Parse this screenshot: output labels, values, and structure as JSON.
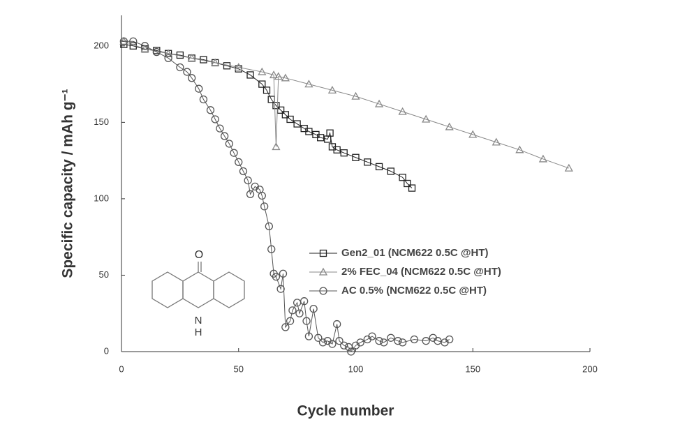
{
  "chart_data": {
    "type": "line",
    "x_label": "Cycle number",
    "y_label": "Specific capacity / mAh g⁻¹",
    "xlim": [
      0,
      200
    ],
    "xticks": [
      0,
      50,
      100,
      150,
      200
    ],
    "ylim": [
      0,
      220
    ],
    "yticks": [
      0,
      50,
      100,
      150,
      200
    ],
    "grid": false,
    "legend": "center-right",
    "structure_labels": [
      "O",
      "N",
      "H"
    ],
    "series": [
      {
        "name": "Gen2_01 (NCM622 0.5C @HT)",
        "color": "#222222",
        "marker": "square",
        "x": [
          1,
          5,
          10,
          15,
          20,
          25,
          30,
          35,
          40,
          45,
          50,
          55,
          60,
          62,
          64,
          66,
          68,
          70,
          72,
          75,
          78,
          80,
          83,
          85,
          88,
          89,
          90,
          92,
          95,
          100,
          105,
          110,
          115,
          120,
          122,
          124
        ],
        "values": [
          201,
          200,
          198,
          197,
          195,
          194,
          192,
          191,
          189,
          187,
          185,
          181,
          175,
          171,
          165,
          161,
          158,
          155,
          152,
          149,
          146,
          144,
          142,
          140,
          139,
          143,
          134,
          132,
          130,
          127,
          124,
          121,
          118,
          114,
          110,
          107
        ]
      },
      {
        "name": "2% FEC_04 (NCM622 0.5C @HT)",
        "color": "#888888",
        "marker": "triangle",
        "x": [
          1,
          10,
          20,
          30,
          40,
          50,
          60,
          65,
          66,
          67,
          70,
          80,
          90,
          100,
          110,
          120,
          130,
          140,
          150,
          160,
          170,
          180,
          191
        ],
        "values": [
          203,
          198,
          195,
          192,
          189,
          186,
          183,
          181,
          134,
          180,
          179,
          175,
          171,
          167,
          162,
          157,
          152,
          147,
          142,
          137,
          132,
          126,
          120
        ]
      },
      {
        "name": "AC 0.5% (NCM622 0.5C @HT)",
        "color": "#555555",
        "marker": "circle",
        "x": [
          1,
          5,
          10,
          15,
          20,
          25,
          28,
          30,
          33,
          35,
          38,
          40,
          42,
          44,
          46,
          48,
          50,
          52,
          54,
          55,
          57,
          59,
          60,
          61,
          63,
          64,
          65,
          66,
          68,
          69,
          70,
          72,
          73,
          75,
          76,
          78,
          79,
          80,
          82,
          84,
          86,
          88,
          90,
          92,
          93,
          95,
          97,
          98,
          100,
          102,
          105,
          107,
          110,
          112,
          115,
          118,
          120,
          125,
          130,
          133,
          135,
          138,
          140
        ],
        "values": [
          203,
          203,
          200,
          196,
          192,
          186,
          183,
          179,
          172,
          165,
          158,
          152,
          146,
          141,
          136,
          130,
          124,
          118,
          112,
          103,
          108,
          106,
          102,
          95,
          82,
          67,
          51,
          49,
          41,
          51,
          16,
          20,
          27,
          32,
          25,
          33,
          20,
          10,
          28,
          9,
          6,
          7,
          5,
          18,
          7,
          4,
          3,
          0,
          4,
          6,
          8,
          10,
          7,
          6,
          9,
          7,
          6,
          8,
          7,
          9,
          7,
          6,
          8
        ]
      }
    ]
  }
}
